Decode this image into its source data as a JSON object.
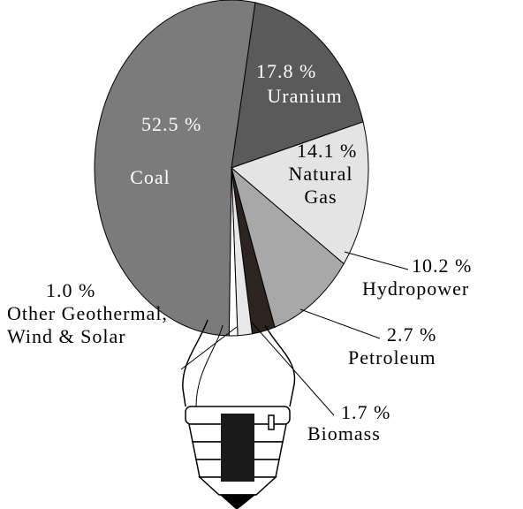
{
  "chart_data": {
    "type": "pie",
    "categories": [
      "Uranium",
      "Natural Gas",
      "Hydropower",
      "Petroleum",
      "Biomass",
      "Other Geothermal, Wind & Solar",
      "Coal"
    ],
    "values": [
      17.8,
      14.1,
      10.2,
      2.7,
      1.7,
      1.0,
      52.5
    ],
    "value_labels": [
      "17.8 %",
      "14.1 %",
      "10.2 %",
      "2.7 %",
      "1.7 %",
      "1.0 %",
      "52.5 %"
    ],
    "colors": [
      "#5a5a5a",
      "#e4e4e4",
      "#a8a8a8",
      "#2b2421",
      "#e8e8e8",
      "#ffffff",
      "#7b7b7b"
    ]
  }
}
